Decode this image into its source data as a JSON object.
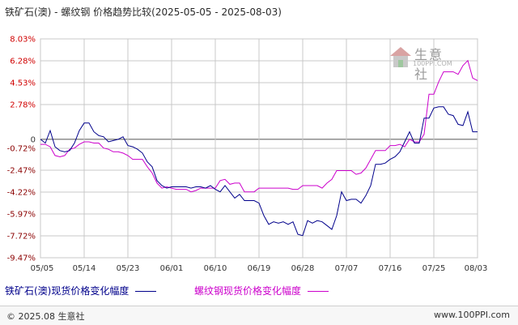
{
  "title": "铁矿石(澳) - 螺纹钢 价格趋势比较(2025-05-05 - 2025-08-03)",
  "watermark": {
    "brand": "生意社",
    "url": "100PPI.COM"
  },
  "legend": {
    "series1": "铁矿石(澳)现货价格变化幅度",
    "series2": "螺纹钢现货价格变化幅度"
  },
  "footer": {
    "left": "© 2025.08 生意社",
    "right": "www.100PPI.com"
  },
  "colors": {
    "series1": "#00008b",
    "series2": "#cc00cc",
    "grid": "#c8c8c8",
    "zero": "#555555"
  },
  "chart_data": {
    "type": "line",
    "ylim": [
      -9.47,
      8.03
    ],
    "grid": true,
    "yticks": [
      "8.03%",
      "6.28%",
      "4.53%",
      "2.78%",
      "0",
      "-0.72%",
      "-2.47%",
      "-4.22%",
      "-5.97%",
      "-7.72%",
      "-9.47%"
    ],
    "yticks_values": [
      8.03,
      6.28,
      4.53,
      2.78,
      0,
      -0.72,
      -2.47,
      -4.22,
      -5.97,
      -7.72,
      -9.47
    ],
    "xticks": [
      "05/05",
      "05/14",
      "05/23",
      "06/01",
      "06/10",
      "06/19",
      "06/28",
      "07/07",
      "07/16",
      "07/25",
      "08/03"
    ],
    "x_count": 91,
    "series": [
      {
        "name": "铁矿石(澳)现货价格变化幅度",
        "points": [
          [
            0,
            0
          ],
          [
            1,
            -0.3
          ],
          [
            2,
            0.7
          ],
          [
            3,
            -0.6
          ],
          [
            4,
            -0.9
          ],
          [
            5,
            -1.0
          ],
          [
            6,
            -0.9
          ],
          [
            7,
            -0.3
          ],
          [
            8,
            0.7
          ],
          [
            9,
            1.3
          ],
          [
            10,
            1.3
          ],
          [
            11,
            0.6
          ],
          [
            12,
            0.3
          ],
          [
            13,
            0.2
          ],
          [
            14,
            -0.2
          ],
          [
            15,
            -0.1
          ],
          [
            16,
            0.0
          ],
          [
            17,
            0.2
          ],
          [
            18,
            -0.5
          ],
          [
            19,
            -0.6
          ],
          [
            20,
            -0.8
          ],
          [
            21,
            -1.1
          ],
          [
            22,
            -1.8
          ],
          [
            23,
            -2.2
          ],
          [
            24,
            -3.3
          ],
          [
            25,
            -3.7
          ],
          [
            26,
            -3.9
          ],
          [
            27,
            -3.8
          ],
          [
            28,
            -3.8
          ],
          [
            29,
            -3.8
          ],
          [
            30,
            -3.8
          ],
          [
            31,
            -3.9
          ],
          [
            32,
            -3.8
          ],
          [
            33,
            -3.8
          ],
          [
            34,
            -3.9
          ],
          [
            35,
            -3.7
          ],
          [
            36,
            -4.0
          ],
          [
            37,
            -4.2
          ],
          [
            38,
            -3.7
          ],
          [
            39,
            -4.2
          ],
          [
            40,
            -4.7
          ],
          [
            41,
            -4.4
          ],
          [
            42,
            -4.9
          ],
          [
            43,
            -4.9
          ],
          [
            44,
            -4.9
          ],
          [
            45,
            -5.1
          ],
          [
            46,
            -6.1
          ],
          [
            47,
            -6.8
          ],
          [
            48,
            -6.6
          ],
          [
            49,
            -6.7
          ],
          [
            50,
            -6.6
          ],
          [
            51,
            -6.8
          ],
          [
            52,
            -6.6
          ],
          [
            53,
            -7.6
          ],
          [
            54,
            -7.7
          ],
          [
            55,
            -6.5
          ],
          [
            56,
            -6.7
          ],
          [
            57,
            -6.5
          ],
          [
            58,
            -6.6
          ],
          [
            59,
            -6.9
          ],
          [
            60,
            -7.2
          ],
          [
            61,
            -6.1
          ],
          [
            62,
            -4.2
          ],
          [
            63,
            -4.9
          ],
          [
            64,
            -4.8
          ],
          [
            65,
            -4.8
          ],
          [
            66,
            -5.1
          ],
          [
            67,
            -4.5
          ],
          [
            68,
            -3.7
          ],
          [
            69,
            -2.0
          ],
          [
            70,
            -2.0
          ],
          [
            71,
            -1.9
          ],
          [
            72,
            -1.6
          ],
          [
            73,
            -1.4
          ],
          [
            74,
            -1.0
          ],
          [
            75,
            -0.2
          ],
          [
            76,
            0.6
          ],
          [
            77,
            -0.3
          ],
          [
            78,
            -0.3
          ],
          [
            79,
            1.7
          ],
          [
            80,
            1.7
          ],
          [
            81,
            2.5
          ],
          [
            82,
            2.6
          ],
          [
            83,
            2.6
          ],
          [
            84,
            2.0
          ],
          [
            85,
            1.9
          ],
          [
            86,
            1.2
          ],
          [
            87,
            1.1
          ],
          [
            88,
            2.2
          ],
          [
            89,
            0.6
          ],
          [
            90,
            0.6
          ]
        ]
      },
      {
        "name": "螺纹钢现货价格变化幅度",
        "points": [
          [
            0,
            -0.4
          ],
          [
            1,
            -0.4
          ],
          [
            2,
            -0.6
          ],
          [
            3,
            -1.3
          ],
          [
            4,
            -1.4
          ],
          [
            5,
            -1.3
          ],
          [
            6,
            -0.8
          ],
          [
            7,
            -0.7
          ],
          [
            8,
            -0.4
          ],
          [
            9,
            -0.2
          ],
          [
            10,
            -0.2
          ],
          [
            11,
            -0.3
          ],
          [
            12,
            -0.3
          ],
          [
            13,
            -0.7
          ],
          [
            14,
            -0.8
          ],
          [
            15,
            -1.0
          ],
          [
            16,
            -1.0
          ],
          [
            17,
            -1.1
          ],
          [
            18,
            -1.3
          ],
          [
            19,
            -1.6
          ],
          [
            20,
            -1.6
          ],
          [
            21,
            -1.6
          ],
          [
            22,
            -2.2
          ],
          [
            23,
            -2.7
          ],
          [
            24,
            -3.5
          ],
          [
            25,
            -3.9
          ],
          [
            26,
            -3.8
          ],
          [
            27,
            -3.9
          ],
          [
            28,
            -4.0
          ],
          [
            29,
            -4.0
          ],
          [
            30,
            -4.0
          ],
          [
            31,
            -4.2
          ],
          [
            32,
            -4.1
          ],
          [
            33,
            -3.9
          ],
          [
            34,
            -3.9
          ],
          [
            35,
            -3.9
          ],
          [
            36,
            -3.9
          ],
          [
            37,
            -3.3
          ],
          [
            38,
            -3.2
          ],
          [
            39,
            -3.6
          ],
          [
            40,
            -3.5
          ],
          [
            41,
            -3.5
          ],
          [
            42,
            -4.2
          ],
          [
            43,
            -4.2
          ],
          [
            44,
            -4.2
          ],
          [
            45,
            -3.9
          ],
          [
            46,
            -3.9
          ],
          [
            47,
            -3.9
          ],
          [
            48,
            -3.9
          ],
          [
            49,
            -3.9
          ],
          [
            50,
            -3.9
          ],
          [
            51,
            -3.9
          ],
          [
            52,
            -4.0
          ],
          [
            53,
            -4.0
          ],
          [
            54,
            -3.7
          ],
          [
            55,
            -3.7
          ],
          [
            56,
            -3.7
          ],
          [
            57,
            -3.7
          ],
          [
            58,
            -3.9
          ],
          [
            59,
            -3.5
          ],
          [
            60,
            -3.2
          ],
          [
            61,
            -2.5
          ],
          [
            62,
            -2.5
          ],
          [
            63,
            -2.5
          ],
          [
            64,
            -2.5
          ],
          [
            65,
            -2.8
          ],
          [
            66,
            -2.7
          ],
          [
            67,
            -2.3
          ],
          [
            68,
            -1.6
          ],
          [
            69,
            -0.9
          ],
          [
            70,
            -0.9
          ],
          [
            71,
            -0.9
          ],
          [
            72,
            -0.5
          ],
          [
            73,
            -0.5
          ],
          [
            74,
            -0.4
          ],
          [
            75,
            -0.6
          ],
          [
            76,
            0.0
          ],
          [
            77,
            -0.2
          ],
          [
            78,
            -0.2
          ],
          [
            79,
            0.4
          ],
          [
            80,
            3.6
          ],
          [
            81,
            3.6
          ],
          [
            82,
            4.6
          ],
          [
            83,
            5.4
          ],
          [
            84,
            5.4
          ],
          [
            85,
            5.4
          ],
          [
            86,
            5.2
          ],
          [
            87,
            5.9
          ],
          [
            88,
            6.3
          ],
          [
            89,
            4.9
          ],
          [
            90,
            4.7
          ]
        ]
      }
    ]
  }
}
